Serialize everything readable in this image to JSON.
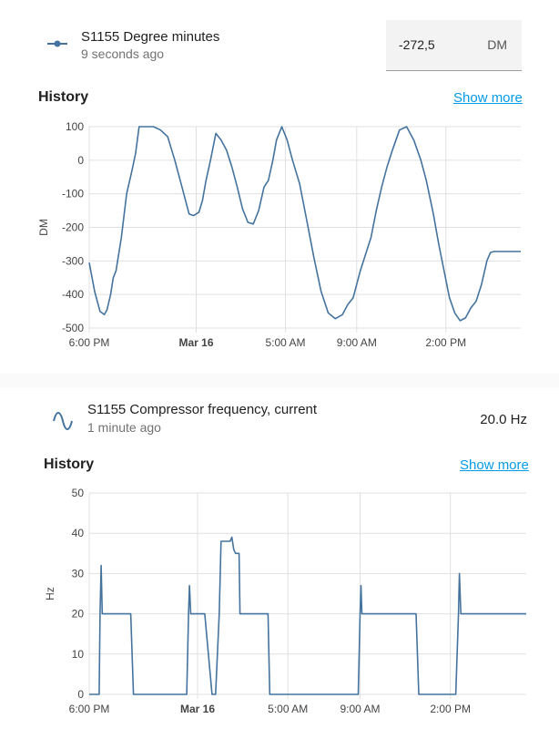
{
  "entity_dm": {
    "name": "S1155 Degree minutes",
    "last_changed": "9 seconds ago",
    "value": "-272,5",
    "unit": "DM",
    "icon": "line-chart-node-icon"
  },
  "history_dm": {
    "title": "History",
    "show_more": "Show more"
  },
  "entity_freq": {
    "name": "S1155 Compressor frequency, current",
    "last_changed": "1 minute ago",
    "state": "20.0 Hz",
    "icon": "sine-wave-icon"
  },
  "history_freq": {
    "title": "History",
    "show_more": "Show more"
  },
  "chart_data": [
    {
      "type": "line",
      "ylabel": "DM",
      "ylim": [
        -500,
        100
      ],
      "yticks": [
        "100",
        "0",
        "-100",
        "-200",
        "-300",
        "-400",
        "-500"
      ],
      "xticks": [
        "6:00 PM",
        "Mar 16",
        "5:00 AM",
        "9:00 AM",
        "2:00 PM"
      ],
      "xticks_bold": [
        false,
        true,
        false,
        false,
        false
      ],
      "xtick_hours": [
        18,
        24,
        29,
        33,
        38
      ],
      "xlim_hours": [
        18,
        42.2
      ],
      "grid": true,
      "color": "#44739e",
      "series": [
        {
          "x": [
            18.0,
            18.3,
            18.6,
            18.85,
            19.0,
            19.2,
            19.35,
            19.5,
            19.8,
            20.1,
            20.4,
            20.6,
            20.8,
            21.2,
            21.6,
            22.0,
            22.4,
            22.8,
            23.2,
            23.6,
            23.85,
            24.0,
            24.15,
            24.35,
            24.55,
            24.8,
            25.1,
            25.4,
            25.7,
            26.0,
            26.3,
            26.6,
            26.9,
            27.2,
            27.5,
            27.8,
            28.05,
            28.3,
            28.5,
            28.8,
            29.1,
            29.4,
            29.8,
            30.2,
            30.6,
            31.0,
            31.4,
            31.8,
            32.2,
            32.5,
            32.8,
            33.0,
            33.2,
            33.5,
            33.8,
            34.1,
            34.4,
            34.7,
            35.0,
            35.4,
            35.8,
            36.2,
            36.6,
            36.9,
            37.1,
            37.3,
            37.6,
            37.9,
            38.2,
            38.5,
            38.8,
            39.1,
            39.4,
            39.7,
            40.0,
            40.3,
            40.5,
            40.7,
            40.9,
            41.2,
            41.5,
            41.8,
            42.1,
            42.2
          ],
          "y": [
            -305,
            -390,
            -450,
            -460,
            -445,
            -400,
            -350,
            -330,
            -230,
            -100,
            -30,
            20,
            100,
            100,
            100,
            90,
            70,
            0,
            -80,
            -160,
            -165,
            -160,
            -155,
            -120,
            -60,
            0,
            80,
            60,
            30,
            -20,
            -80,
            -145,
            -185,
            -190,
            -150,
            -80,
            -60,
            0,
            60,
            100,
            60,
            0,
            -70,
            -180,
            -290,
            -390,
            -455,
            -472,
            -460,
            -430,
            -410,
            -370,
            -330,
            -280,
            -230,
            -150,
            -80,
            -20,
            30,
            90,
            100,
            60,
            0,
            -60,
            -110,
            -160,
            -250,
            -330,
            -410,
            -455,
            -478,
            -470,
            -440,
            -420,
            -370,
            -300,
            -275,
            -272,
            -272,
            -272,
            -272,
            -272,
            -272,
            -272
          ]
        }
      ]
    },
    {
      "type": "line",
      "ylabel": "Hz",
      "ylim": [
        0,
        50
      ],
      "yticks": [
        "50",
        "40",
        "30",
        "20",
        "10",
        "0"
      ],
      "xticks": [
        "6:00 PM",
        "Mar 16",
        "5:00 AM",
        "9:00 AM",
        "2:00 PM"
      ],
      "xticks_bold": [
        false,
        true,
        false,
        false,
        false
      ],
      "xtick_hours": [
        18,
        24,
        29,
        33,
        38
      ],
      "xlim_hours": [
        18,
        42.2
      ],
      "grid": true,
      "color": "#44739e",
      "series": [
        {
          "x": [
            18.0,
            18.55,
            18.6,
            18.66,
            18.72,
            18.8,
            19.5,
            20.3,
            20.45,
            23.4,
            23.5,
            23.55,
            23.62,
            23.7,
            24.4,
            24.8,
            25.0,
            25.2,
            25.3,
            25.4,
            25.8,
            25.9,
            26.0,
            26.1,
            26.3,
            26.35,
            26.45,
            26.7,
            27.9,
            28.0,
            28.6,
            29.0,
            32.9,
            33.0,
            33.05,
            33.1,
            33.3,
            35.0,
            36.1,
            36.25,
            38.3,
            38.45,
            38.5,
            38.58,
            38.65,
            39.0,
            40.0,
            42.2
          ],
          "y": [
            0,
            0,
            20,
            32,
            20,
            20,
            20,
            20,
            0,
            0,
            20,
            27,
            20,
            20,
            20,
            0,
            0,
            20,
            38,
            38,
            38,
            39,
            36,
            35,
            35,
            20,
            20,
            20,
            20,
            0,
            0,
            0,
            0,
            20,
            27,
            20,
            20,
            20,
            20,
            0,
            0,
            20,
            30,
            20,
            20,
            20,
            20,
            20
          ]
        }
      ]
    }
  ]
}
